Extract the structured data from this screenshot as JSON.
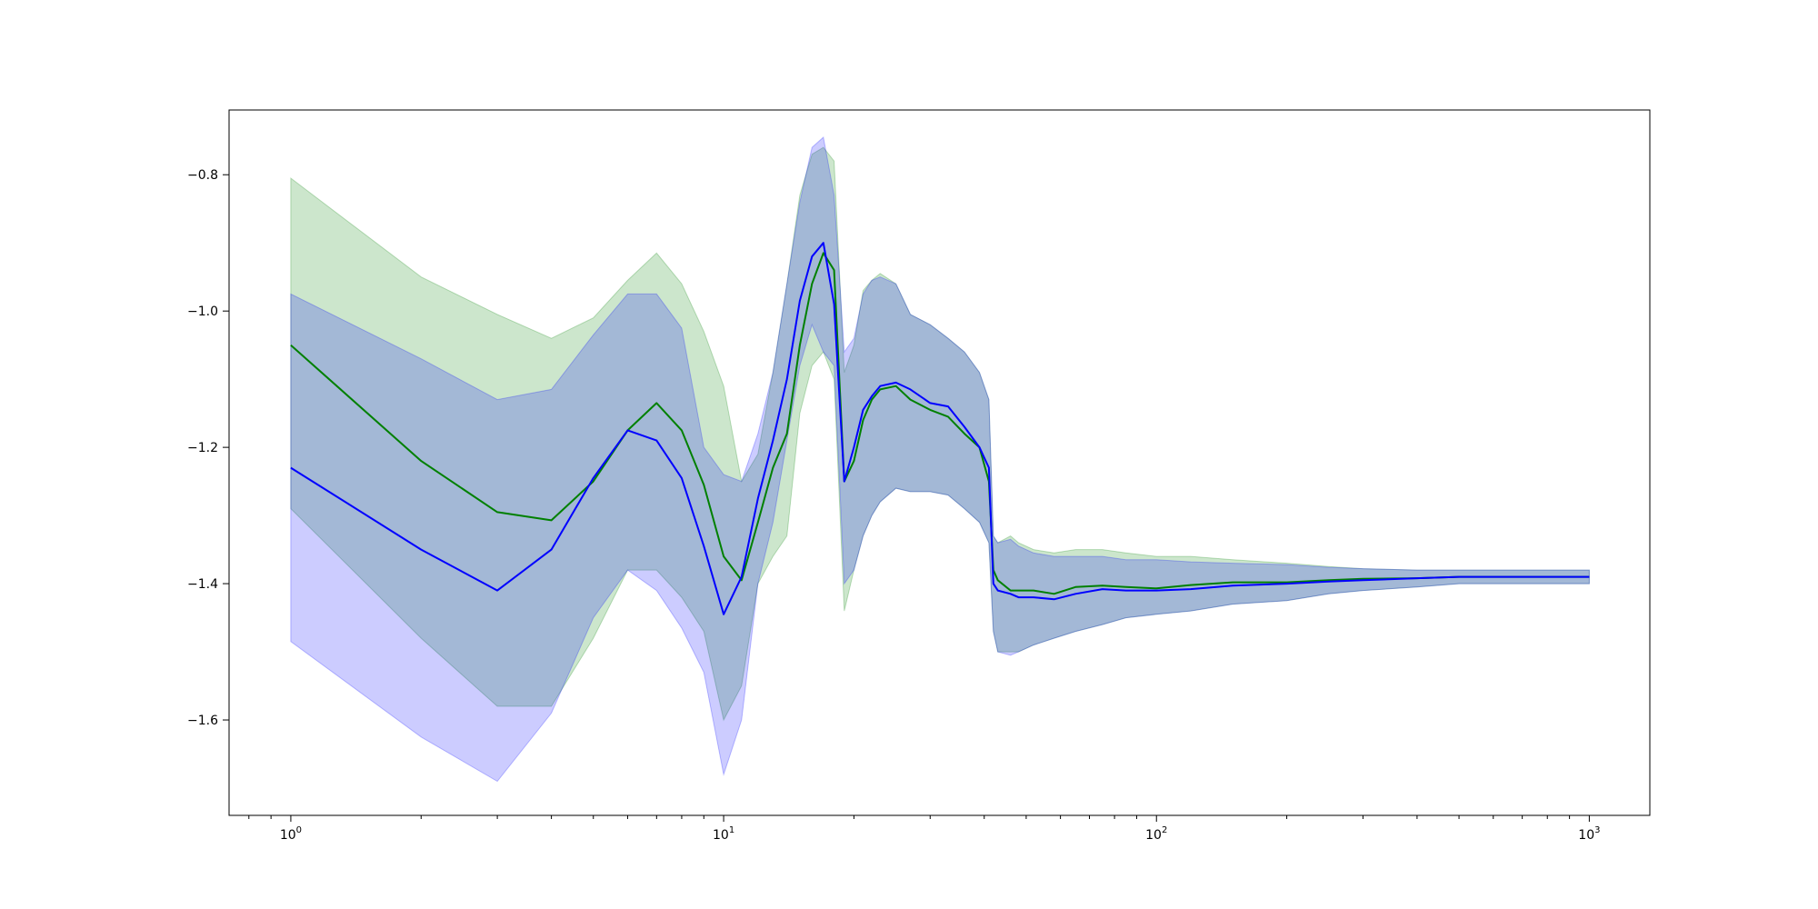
{
  "chart_data": {
    "type": "line",
    "title": "",
    "xlabel": "",
    "ylabel": "",
    "xscale": "log",
    "xlim": [
      0.72,
      1380
    ],
    "ylim": [
      -1.74,
      -0.705
    ],
    "grid": false,
    "legend": "none",
    "x_ticks": [
      {
        "value": 1,
        "base": "10",
        "exp": "0"
      },
      {
        "value": 10,
        "base": "10",
        "exp": "1"
      },
      {
        "value": 100,
        "base": "10",
        "exp": "2"
      },
      {
        "value": 1000,
        "base": "10",
        "exp": "3"
      }
    ],
    "y_ticks": [
      {
        "value": -0.8,
        "label": "−0.8"
      },
      {
        "value": -1.0,
        "label": "−1.0"
      },
      {
        "value": -1.2,
        "label": "−1.2"
      },
      {
        "value": -1.4,
        "label": "−1.4"
      },
      {
        "value": -1.6,
        "label": "−1.6"
      }
    ],
    "series": [
      {
        "color": "#008000",
        "band_color": "#008000",
        "x": [
          1,
          2,
          3,
          4,
          5,
          6,
          7,
          8,
          9,
          10,
          11,
          12,
          13,
          14,
          15,
          16,
          17,
          18,
          19,
          20,
          21,
          22,
          23,
          25,
          27,
          30,
          33,
          36,
          39,
          41,
          42,
          43,
          46,
          48,
          52,
          58,
          65,
          75,
          85,
          100,
          120,
          150,
          200,
          250,
          300,
          400,
          500,
          600,
          700,
          800,
          1000
        ],
        "y": [
          -1.05,
          -1.22,
          -1.295,
          -1.307,
          -1.25,
          -1.175,
          -1.135,
          -1.175,
          -1.255,
          -1.36,
          -1.395,
          -1.31,
          -1.23,
          -1.18,
          -1.05,
          -0.96,
          -0.915,
          -0.94,
          -1.25,
          -1.22,
          -1.16,
          -1.13,
          -1.115,
          -1.11,
          -1.13,
          -1.145,
          -1.155,
          -1.18,
          -1.2,
          -1.25,
          -1.38,
          -1.395,
          -1.41,
          -1.41,
          -1.41,
          -1.415,
          -1.405,
          -1.403,
          -1.405,
          -1.407,
          -1.402,
          -1.398,
          -1.398,
          -1.395,
          -1.393,
          -1.392,
          -1.39,
          -1.39,
          -1.39,
          -1.39,
          -1.39
        ],
        "lower": [
          -1.29,
          -1.48,
          -1.58,
          -1.58,
          -1.48,
          -1.38,
          -1.38,
          -1.42,
          -1.47,
          -1.6,
          -1.55,
          -1.4,
          -1.36,
          -1.33,
          -1.15,
          -1.08,
          -1.06,
          -1.1,
          -1.44,
          -1.38,
          -1.33,
          -1.3,
          -1.28,
          -1.26,
          -1.265,
          -1.265,
          -1.27,
          -1.29,
          -1.31,
          -1.34,
          -1.47,
          -1.5,
          -1.5,
          -1.5,
          -1.49,
          -1.48,
          -1.47,
          -1.46,
          -1.45,
          -1.445,
          -1.44,
          -1.43,
          -1.425,
          -1.415,
          -1.41,
          -1.405,
          -1.4,
          -1.4,
          -1.4,
          -1.4,
          -1.4
        ],
        "upper": [
          -0.805,
          -0.95,
          -1.005,
          -1.04,
          -1.01,
          -0.955,
          -0.915,
          -0.96,
          -1.03,
          -1.11,
          -1.25,
          -1.21,
          -1.09,
          -0.96,
          -0.83,
          -0.77,
          -0.76,
          -0.78,
          -1.09,
          -1.05,
          -0.97,
          -0.955,
          -0.945,
          -0.96,
          -1.005,
          -1.02,
          -1.04,
          -1.06,
          -1.09,
          -1.13,
          -1.33,
          -1.34,
          -1.33,
          -1.34,
          -1.35,
          -1.355,
          -1.35,
          -1.35,
          -1.355,
          -1.36,
          -1.36,
          -1.365,
          -1.37,
          -1.375,
          -1.378,
          -1.38,
          -1.38,
          -1.38,
          -1.38,
          -1.38,
          -1.38
        ]
      },
      {
        "color": "#0000ff",
        "band_color": "#0000ff",
        "x": [
          1,
          2,
          3,
          4,
          5,
          6,
          7,
          8,
          9,
          10,
          11,
          12,
          13,
          14,
          15,
          16,
          17,
          18,
          19,
          20,
          21,
          22,
          23,
          25,
          27,
          30,
          33,
          36,
          39,
          41,
          42,
          43,
          46,
          48,
          52,
          58,
          65,
          75,
          85,
          100,
          120,
          150,
          200,
          250,
          300,
          400,
          500,
          600,
          700,
          800,
          1000
        ],
        "y": [
          -1.23,
          -1.35,
          -1.41,
          -1.35,
          -1.245,
          -1.175,
          -1.19,
          -1.245,
          -1.345,
          -1.445,
          -1.39,
          -1.275,
          -1.19,
          -1.1,
          -0.985,
          -0.92,
          -0.9,
          -0.99,
          -1.25,
          -1.2,
          -1.145,
          -1.125,
          -1.11,
          -1.105,
          -1.115,
          -1.135,
          -1.14,
          -1.17,
          -1.2,
          -1.23,
          -1.4,
          -1.41,
          -1.415,
          -1.42,
          -1.42,
          -1.423,
          -1.415,
          -1.408,
          -1.41,
          -1.41,
          -1.408,
          -1.403,
          -1.4,
          -1.397,
          -1.395,
          -1.392,
          -1.39,
          -1.39,
          -1.39,
          -1.39,
          -1.39
        ],
        "lower": [
          -1.485,
          -1.625,
          -1.69,
          -1.59,
          -1.45,
          -1.38,
          -1.41,
          -1.465,
          -1.53,
          -1.68,
          -1.6,
          -1.4,
          -1.31,
          -1.19,
          -1.08,
          -1.02,
          -1.06,
          -1.08,
          -1.4,
          -1.38,
          -1.33,
          -1.3,
          -1.28,
          -1.26,
          -1.265,
          -1.265,
          -1.27,
          -1.29,
          -1.31,
          -1.34,
          -1.47,
          -1.5,
          -1.505,
          -1.5,
          -1.49,
          -1.48,
          -1.47,
          -1.46,
          -1.45,
          -1.445,
          -1.44,
          -1.43,
          -1.425,
          -1.415,
          -1.41,
          -1.405,
          -1.4,
          -1.4,
          -1.4,
          -1.4,
          -1.4
        ],
        "upper": [
          -0.975,
          -1.07,
          -1.13,
          -1.115,
          -1.035,
          -0.975,
          -0.975,
          -1.025,
          -1.2,
          -1.24,
          -1.25,
          -1.18,
          -1.09,
          -0.96,
          -0.84,
          -0.76,
          -0.745,
          -0.83,
          -1.06,
          -1.04,
          -0.975,
          -0.955,
          -0.95,
          -0.96,
          -1.005,
          -1.02,
          -1.04,
          -1.06,
          -1.09,
          -1.13,
          -1.33,
          -1.34,
          -1.335,
          -1.345,
          -1.355,
          -1.36,
          -1.36,
          -1.36,
          -1.365,
          -1.365,
          -1.368,
          -1.37,
          -1.372,
          -1.376,
          -1.378,
          -1.38,
          -1.38,
          -1.38,
          -1.38,
          -1.38,
          -1.38
        ]
      }
    ]
  }
}
